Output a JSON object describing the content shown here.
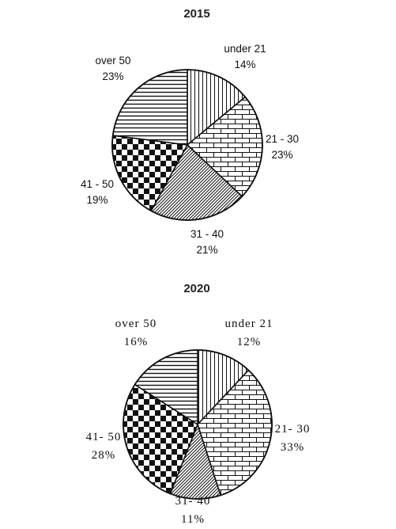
{
  "chart_data": [
    {
      "type": "pie",
      "title": "2015",
      "categories": [
        "under 21",
        "21 - 30",
        "31 - 40",
        "41 - 50",
        "over 50"
      ],
      "values": [
        14,
        23,
        21,
        19,
        23
      ],
      "value_labels": [
        "14%",
        "23%",
        "21%",
        "19%",
        "23%"
      ],
      "unit": "%",
      "legend": "none",
      "slice_patterns": [
        "vertical-lines",
        "brick",
        "diagonal-lines",
        "checkerboard",
        "horizontal-lines"
      ]
    },
    {
      "type": "pie",
      "title": "2020",
      "categories": [
        "under 21",
        "21- 30",
        "31- 40",
        "41- 50",
        "over 50"
      ],
      "values": [
        12,
        33,
        11,
        28,
        16
      ],
      "value_labels": [
        "12%",
        "33%",
        "11%",
        "28%",
        "16%"
      ],
      "unit": "%",
      "legend": "none",
      "slice_patterns": [
        "vertical-lines",
        "brick",
        "diagonal-lines",
        "checkerboard",
        "horizontal-lines"
      ]
    }
  ]
}
